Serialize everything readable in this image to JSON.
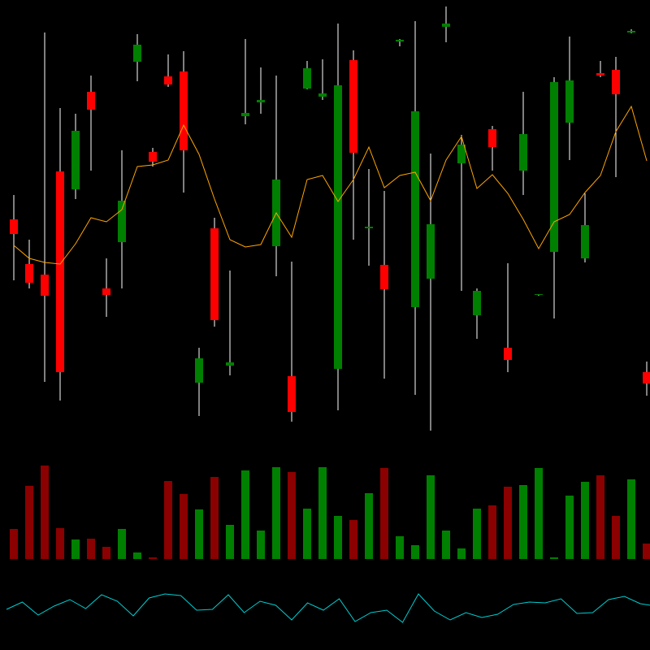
{
  "chart_data": [
    {
      "type": "candlestick",
      "ylim": [
        0,
        560
      ],
      "up_color": "#008000",
      "down_color": "#ff0000",
      "wick_color": "#ffffff",
      "open": [
        290,
        235,
        222,
        349,
        327,
        447,
        205,
        262,
        484,
        373,
        466,
        472,
        89,
        279,
        110,
        417,
        434,
        257,
        97,
        451,
        441,
        106,
        486,
        279,
        234,
        509,
        182,
        217,
        527,
        359,
        172,
        401,
        132,
        350,
        197,
        250,
        409,
        242,
        470,
        474,
        520,
        102
      ],
      "high": [
        320,
        265,
        520,
        427,
        420,
        467,
        242,
        375,
        518,
        378,
        493,
        497,
        132,
        292,
        227,
        512,
        477,
        467,
        238,
        485,
        487,
        531,
        498,
        352,
        325,
        512,
        534,
        371,
        552,
        394,
        205,
        405,
        236,
        447,
        198,
        465,
        515,
        322,
        485,
        490,
        524,
        115
      ],
      "low": [
        215,
        205,
        90,
        67,
        315,
        350,
        170,
        205,
        460,
        355,
        453,
        323,
        48,
        158,
        98,
        407,
        420,
        220,
        41,
        450,
        437,
        55,
        265,
        233,
        94,
        503,
        74,
        30,
        508,
        202,
        143,
        350,
        102,
        320,
        196,
        168,
        363,
        237,
        465,
        342,
        519,
        73
      ],
      "close": [
        272,
        212,
        196,
        102,
        399,
        425,
        197,
        313,
        505,
        361,
        456,
        375,
        119,
        166,
        114,
        421,
        437,
        339,
        53,
        476,
        445,
        455,
        372,
        281,
        204,
        511,
        423,
        284,
        531,
        382,
        202,
        379,
        117,
        395,
        198,
        459,
        461,
        283,
        467,
        444,
        522,
        88
      ],
      "overlay": {
        "color": "#ffa500",
        "values": [
          258,
          242,
          237,
          235,
          260,
          292,
          287,
          302,
          355,
          357,
          363,
          406,
          370,
          315,
          265,
          256,
          259,
          298,
          268,
          339,
          344,
          312,
          339,
          379,
          329,
          344,
          348,
          313,
          363,
          392,
          328,
          345,
          322,
          290,
          254,
          287,
          296,
          323,
          344,
          398,
          429,
          362
        ]
      }
    },
    {
      "type": "bar",
      "ylim": [
        0,
        128
      ],
      "values": [
        37,
        90,
        115,
        38,
        24,
        25,
        15,
        37,
        8,
        2,
        96,
        80,
        61,
        101,
        42,
        109,
        35,
        113,
        107,
        62,
        113,
        53,
        48,
        81,
        112,
        28,
        17,
        103,
        35,
        13,
        62,
        66,
        89,
        91,
        112,
        2,
        78,
        95,
        103,
        53,
        98,
        19
      ],
      "colors": [
        "#8b0000",
        "#8b0000",
        "#8b0000",
        "#8b0000",
        "#008000",
        "#8b0000",
        "#8b0000",
        "#008000",
        "#008000",
        "#8b0000",
        "#8b0000",
        "#8b0000",
        "#008000",
        "#8b0000",
        "#008000",
        "#008000",
        "#008000",
        "#008000",
        "#8b0000",
        "#008000",
        "#008000",
        "#008000",
        "#8b0000",
        "#008000",
        "#8b0000",
        "#008000",
        "#008000",
        "#008000",
        "#008000",
        "#008000",
        "#008000",
        "#8b0000",
        "#8b0000",
        "#008000",
        "#008000",
        "#008000",
        "#008000",
        "#008000",
        "#8b0000",
        "#8b0000",
        "#008000",
        "#8b0000"
      ]
    },
    {
      "type": "line",
      "ylim": [
        0,
        100
      ],
      "color": "#00ced1",
      "values": [
        50,
        59,
        43,
        54,
        62,
        51,
        68,
        60,
        42,
        64,
        69,
        67,
        49,
        50,
        68,
        46,
        60,
        55,
        37,
        58,
        49,
        63,
        35,
        46,
        49,
        34,
        69,
        48,
        37,
        46,
        40,
        44,
        56,
        59,
        58,
        63,
        45,
        46,
        62,
        66,
        57,
        54
      ]
    }
  ]
}
